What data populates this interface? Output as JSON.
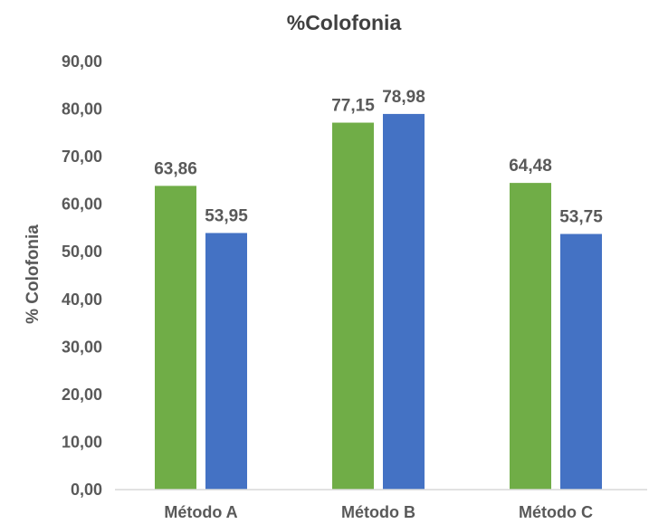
{
  "chart_data": {
    "type": "bar",
    "title": "%Colofonia",
    "xlabel": "",
    "ylabel": "% Colofonia",
    "categories": [
      "Método A",
      "Método B",
      "Método C"
    ],
    "series": [
      {
        "values": [
          63.86,
          77.15,
          64.48
        ],
        "labels": [
          "63,86",
          "77,15",
          "64,48"
        ],
        "color": "#70ad47"
      },
      {
        "values": [
          53.95,
          78.98,
          53.75
        ],
        "labels": [
          "53,95",
          "78,98",
          "53,75"
        ],
        "color": "#4472c4"
      }
    ],
    "ylim": [
      0,
      90
    ],
    "yticks": [
      0,
      10,
      20,
      30,
      40,
      50,
      60,
      70,
      80,
      90
    ],
    "ytick_labels": [
      "0,00",
      "10,00",
      "20,00",
      "30,00",
      "40,00",
      "50,00",
      "60,00",
      "70,00",
      "80,00",
      "90,00"
    ],
    "grid": false,
    "legend": "none"
  }
}
